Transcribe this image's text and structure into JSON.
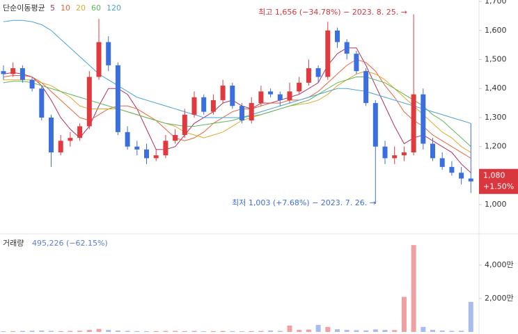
{
  "chart_data": [
    {
      "type": "candlestick",
      "legend_title": "단순이동평균",
      "open": [
        1460,
        1450,
        1470,
        1430,
        1400,
        1300,
        1180,
        1220,
        1230,
        1270,
        1440,
        1560,
        1480,
        1250,
        1200,
        1190,
        1160,
        1170,
        1220,
        1240,
        1310,
        1370,
        1320,
        1360,
        1410,
        1340,
        1290,
        1350,
        1390,
        1380,
        1360,
        1390,
        1420,
        1470,
        1440,
        1600,
        1560,
        1520,
        1460,
        1350,
        1200,
        1160,
        1170,
        1180,
        1380,
        1210,
        1160,
        1130,
        1110,
        1090
      ],
      "high": [
        1480,
        1490,
        1480,
        1440,
        1410,
        1310,
        1240,
        1250,
        1280,
        1460,
        1640,
        1580,
        1490,
        1270,
        1220,
        1210,
        1190,
        1240,
        1260,
        1330,
        1390,
        1380,
        1380,
        1430,
        1420,
        1350,
        1370,
        1410,
        1400,
        1390,
        1420,
        1440,
        1500,
        1480,
        1630,
        1610,
        1570,
        1530,
        1470,
        1360,
        1220,
        1200,
        1200,
        1656,
        1400,
        1230,
        1180,
        1150,
        1130,
        1280
      ],
      "low": [
        1430,
        1440,
        1420,
        1390,
        1290,
        1130,
        1170,
        1200,
        1220,
        1260,
        1430,
        1460,
        1240,
        1190,
        1170,
        1140,
        1150,
        1160,
        1210,
        1230,
        1300,
        1310,
        1310,
        1350,
        1330,
        1280,
        1280,
        1340,
        1370,
        1340,
        1350,
        1380,
        1410,
        1420,
        1430,
        1540,
        1500,
        1450,
        1340,
        1003,
        1140,
        1140,
        1150,
        1170,
        1190,
        1150,
        1120,
        1100,
        1070,
        1040
      ],
      "close": [
        1450,
        1470,
        1430,
        1400,
        1300,
        1180,
        1220,
        1230,
        1270,
        1440,
        1560,
        1480,
        1250,
        1200,
        1190,
        1160,
        1170,
        1220,
        1240,
        1310,
        1370,
        1320,
        1360,
        1410,
        1340,
        1290,
        1350,
        1390,
        1380,
        1360,
        1390,
        1420,
        1470,
        1440,
        1600,
        1560,
        1520,
        1460,
        1350,
        1200,
        1160,
        1170,
        1180,
        1380,
        1210,
        1160,
        1130,
        1110,
        1090,
        1080
      ],
      "up_color": "#e0393e",
      "down_color": "#3b6fe0",
      "series": [
        {
          "name": "5",
          "color": "#b03060",
          "values": [
            1450,
            1455,
            1450,
            1440,
            1410,
            1360,
            1300,
            1260,
            1230,
            1270,
            1340,
            1400,
            1400,
            1380,
            1330,
            1260,
            1190,
            1190,
            1200,
            1240,
            1280,
            1300,
            1320,
            1350,
            1360,
            1340,
            1330,
            1350,
            1350,
            1360,
            1370,
            1380,
            1400,
            1420,
            1480,
            1520,
            1540,
            1540,
            1480,
            1410,
            1340,
            1270,
            1210,
            1230,
            1240,
            1220,
            1200,
            1180,
            1140,
            1110
          ]
        },
        {
          "name": "10",
          "color": "#e8643c",
          "values": [
            1440,
            1445,
            1445,
            1440,
            1420,
            1390,
            1360,
            1330,
            1300,
            1290,
            1310,
            1330,
            1340,
            1340,
            1330,
            1310,
            1290,
            1260,
            1230,
            1220,
            1230,
            1250,
            1280,
            1300,
            1320,
            1330,
            1330,
            1340,
            1350,
            1350,
            1360,
            1360,
            1370,
            1390,
            1420,
            1450,
            1480,
            1500,
            1490,
            1460,
            1410,
            1370,
            1320,
            1290,
            1270,
            1240,
            1220,
            1200,
            1180,
            1160
          ]
        },
        {
          "name": "20",
          "color": "#e0a92c",
          "values": [
            1430,
            1430,
            1430,
            1430,
            1420,
            1410,
            1390,
            1370,
            1340,
            1330,
            1330,
            1330,
            1330,
            1320,
            1310,
            1300,
            1290,
            1280,
            1270,
            1250,
            1240,
            1230,
            1240,
            1250,
            1270,
            1290,
            1300,
            1310,
            1320,
            1330,
            1340,
            1345,
            1350,
            1360,
            1380,
            1410,
            1430,
            1450,
            1460,
            1450,
            1430,
            1400,
            1370,
            1340,
            1310,
            1280,
            1250,
            1230,
            1200,
            1180
          ]
        },
        {
          "name": "60",
          "color": "#5cb85c",
          "values": [
            1420,
            1425,
            1425,
            1420,
            1410,
            1400,
            1390,
            1380,
            1370,
            1360,
            1350,
            1340,
            1330,
            1320,
            1310,
            1300,
            1290,
            1280,
            1275,
            1270,
            1270,
            1275,
            1280,
            1285,
            1290,
            1300,
            1305,
            1310,
            1320,
            1330,
            1340,
            1350,
            1360,
            1380,
            1400,
            1420,
            1430,
            1440,
            1440,
            1430,
            1420,
            1400,
            1380,
            1360,
            1340,
            1310,
            1290,
            1260,
            1230,
            1200
          ]
        },
        {
          "name": "120",
          "color": "#4aa3d8",
          "values": [
            1630,
            1635,
            1635,
            1630,
            1620,
            1600,
            1570,
            1540,
            1510,
            1480,
            1450,
            1430,
            1410,
            1390,
            1370,
            1360,
            1350,
            1340,
            1330,
            1320,
            1310,
            1300,
            1300,
            1300,
            1300,
            1300,
            1310,
            1320,
            1330,
            1340,
            1350,
            1360,
            1370,
            1380,
            1390,
            1400,
            1400,
            1395,
            1390,
            1380,
            1370,
            1360,
            1350,
            1340,
            1330,
            1320,
            1310,
            1300,
            1290,
            1280
          ]
        }
      ],
      "ylim": [
        902,
        1705
      ],
      "yticks": [
        {
          "value": 1000,
          "label": "1,000"
        },
        {
          "value": 1100,
          "label": "1,100"
        },
        {
          "value": 1200,
          "label": "1,200"
        },
        {
          "value": 1300,
          "label": "1,300"
        },
        {
          "value": 1400,
          "label": "1,400"
        },
        {
          "value": 1500,
          "label": "1,500"
        },
        {
          "value": 1600,
          "label": "1,600"
        },
        {
          "value": 1700,
          "label": "1,700"
        }
      ],
      "annotations": [
        {
          "text": "최고 1,656 (−34.78%) − 2023. 8. 25. →",
          "value": 1656,
          "color": "#d9363e"
        },
        {
          "text": "최저 1,003 (+7.68%) − 2023. 7. 26. →",
          "value": 1003,
          "color": "#3b6fe0"
        }
      ],
      "current_price": {
        "value": 1080,
        "label": "1,080",
        "change": "+1.50%",
        "color": "#d9363e"
      }
    },
    {
      "type": "bar",
      "title": "거래량",
      "subtitle": "495,226 (−62.15%)",
      "values": [
        40,
        50,
        60,
        70,
        80,
        60,
        50,
        60,
        70,
        120,
        180,
        120,
        80,
        60,
        50,
        40,
        50,
        60,
        60,
        50,
        60,
        40,
        50,
        60,
        50,
        40,
        50,
        60,
        80,
        60,
        380,
        120,
        140,
        420,
        300,
        160,
        120,
        100,
        90,
        150,
        120,
        110,
        2100,
        5200,
        300,
        120,
        80,
        60,
        70,
        1800
      ],
      "ylim": [
        0,
        5875
      ],
      "yticks": [
        {
          "value": 2000,
          "label": "2,000만"
        },
        {
          "value": 4000,
          "label": "4,000만"
        }
      ]
    }
  ]
}
